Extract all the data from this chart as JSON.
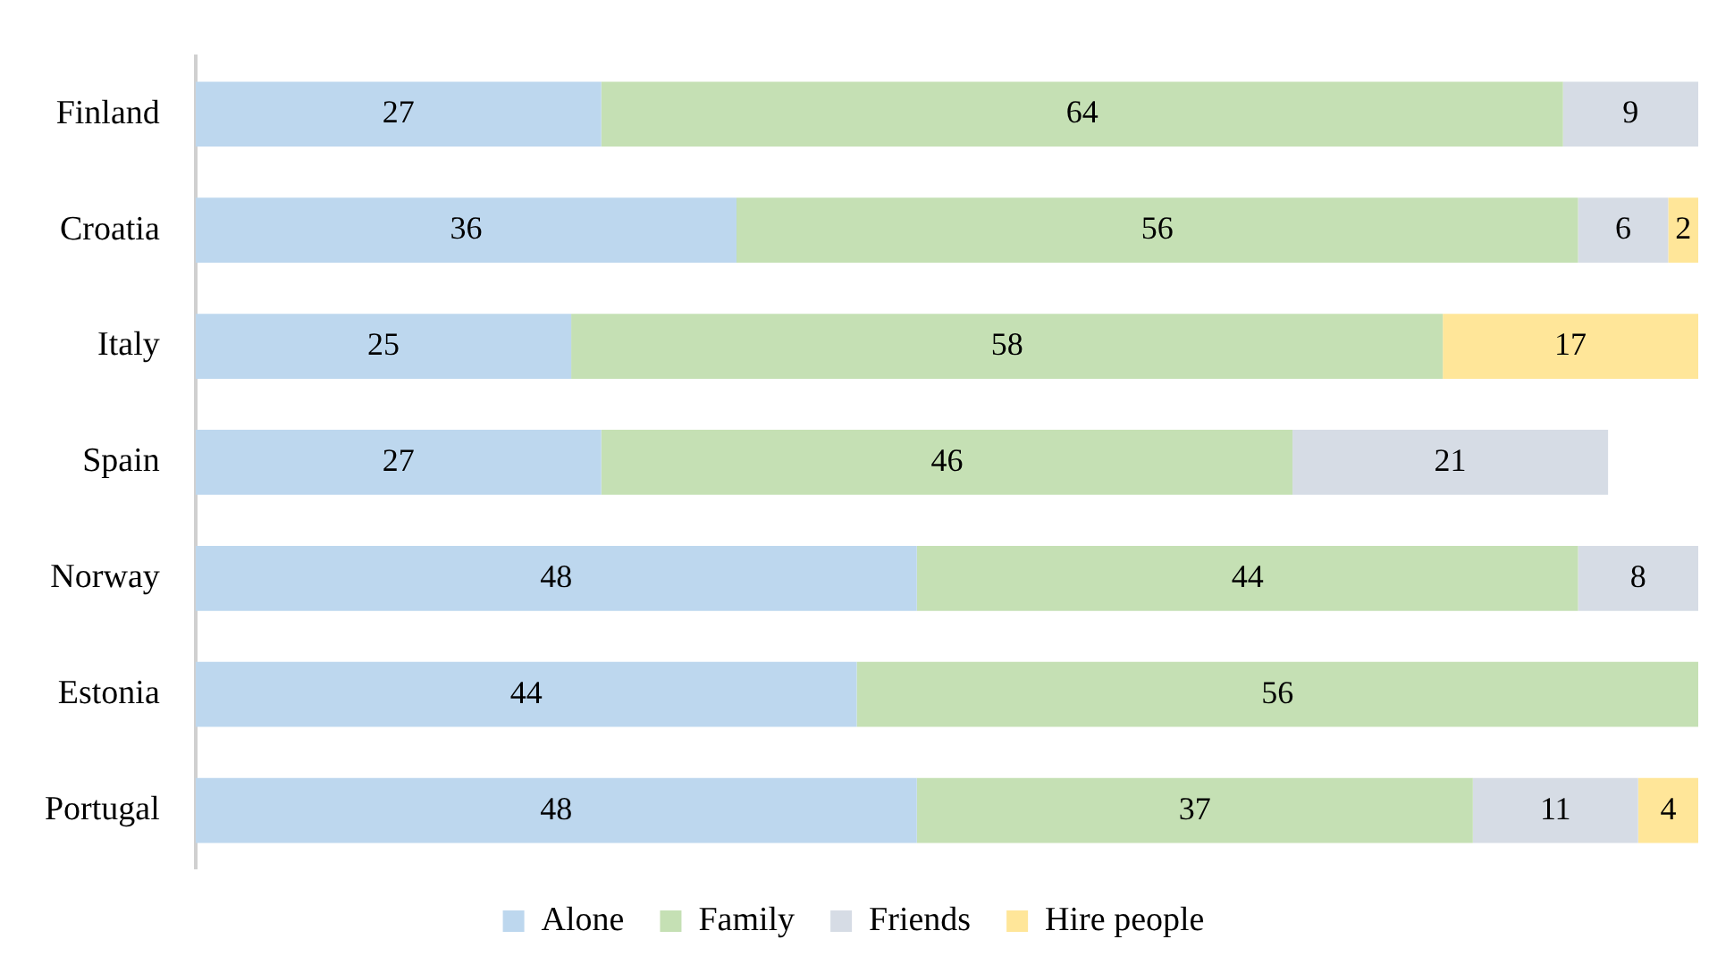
{
  "chart_data": {
    "type": "bar",
    "orientation": "horizontal",
    "stacked": true,
    "categories": [
      "Finland",
      "Croatia",
      "Italy",
      "Spain",
      "Norway",
      "Estonia",
      "Portugal"
    ],
    "series": [
      {
        "name": "Alone",
        "color": "#bdd7ee",
        "values": [
          27,
          36,
          25,
          27,
          48,
          44,
          48
        ]
      },
      {
        "name": "Family",
        "color": "#c5e0b4",
        "values": [
          64,
          56,
          58,
          46,
          44,
          56,
          37
        ]
      },
      {
        "name": "Friends",
        "color": "#d6dce5",
        "values": [
          9,
          6,
          null,
          21,
          8,
          null,
          11
        ]
      },
      {
        "name": "Hire people",
        "color": "#ffe699",
        "values": [
          null,
          2,
          17,
          null,
          null,
          null,
          4
        ]
      }
    ],
    "xlim": [
      0,
      100
    ],
    "tick_labels": "y",
    "legend": "bottom",
    "data_labels": true
  }
}
